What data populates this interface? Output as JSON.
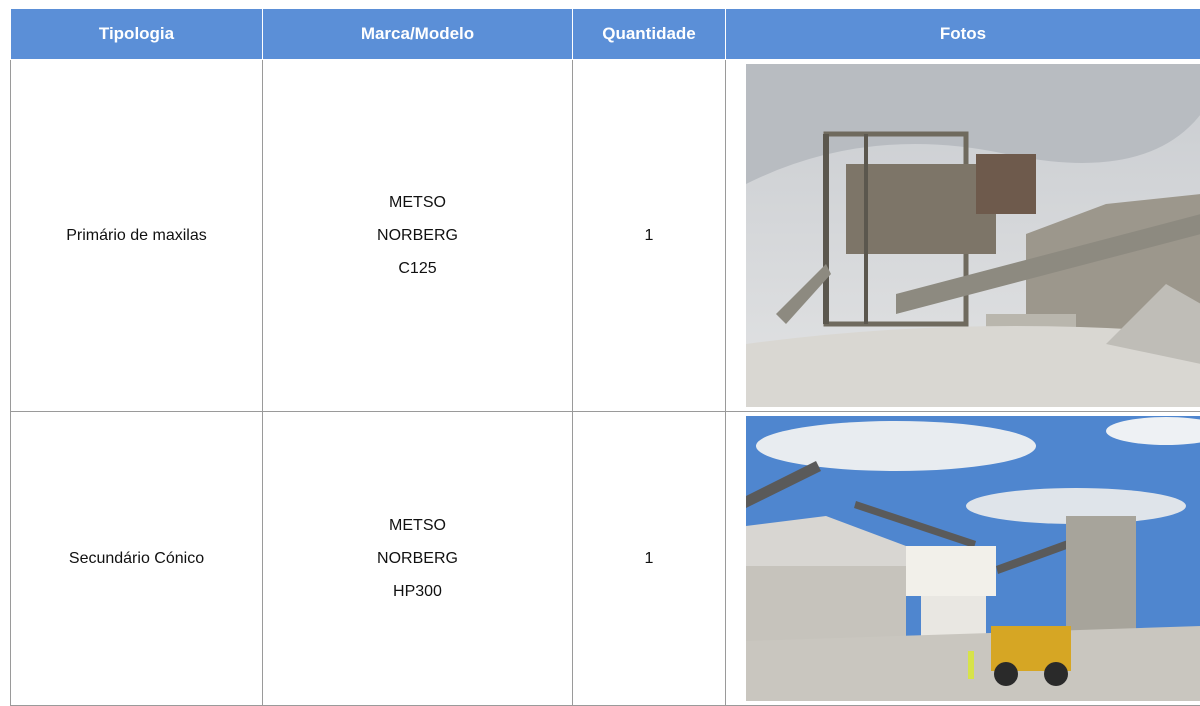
{
  "table": {
    "header": [
      "Tipologia",
      "Marca/Modelo",
      "Quantidade",
      "Fotos"
    ],
    "rows": [
      [
        "Primário de maxilas",
        [
          "METSO",
          "NORBERG",
          "C125"
        ],
        1
      ],
      [
        "Secundário Cónico",
        [
          "METSO",
          "NORBERG",
          "HP300"
        ],
        1
      ]
    ]
  }
}
